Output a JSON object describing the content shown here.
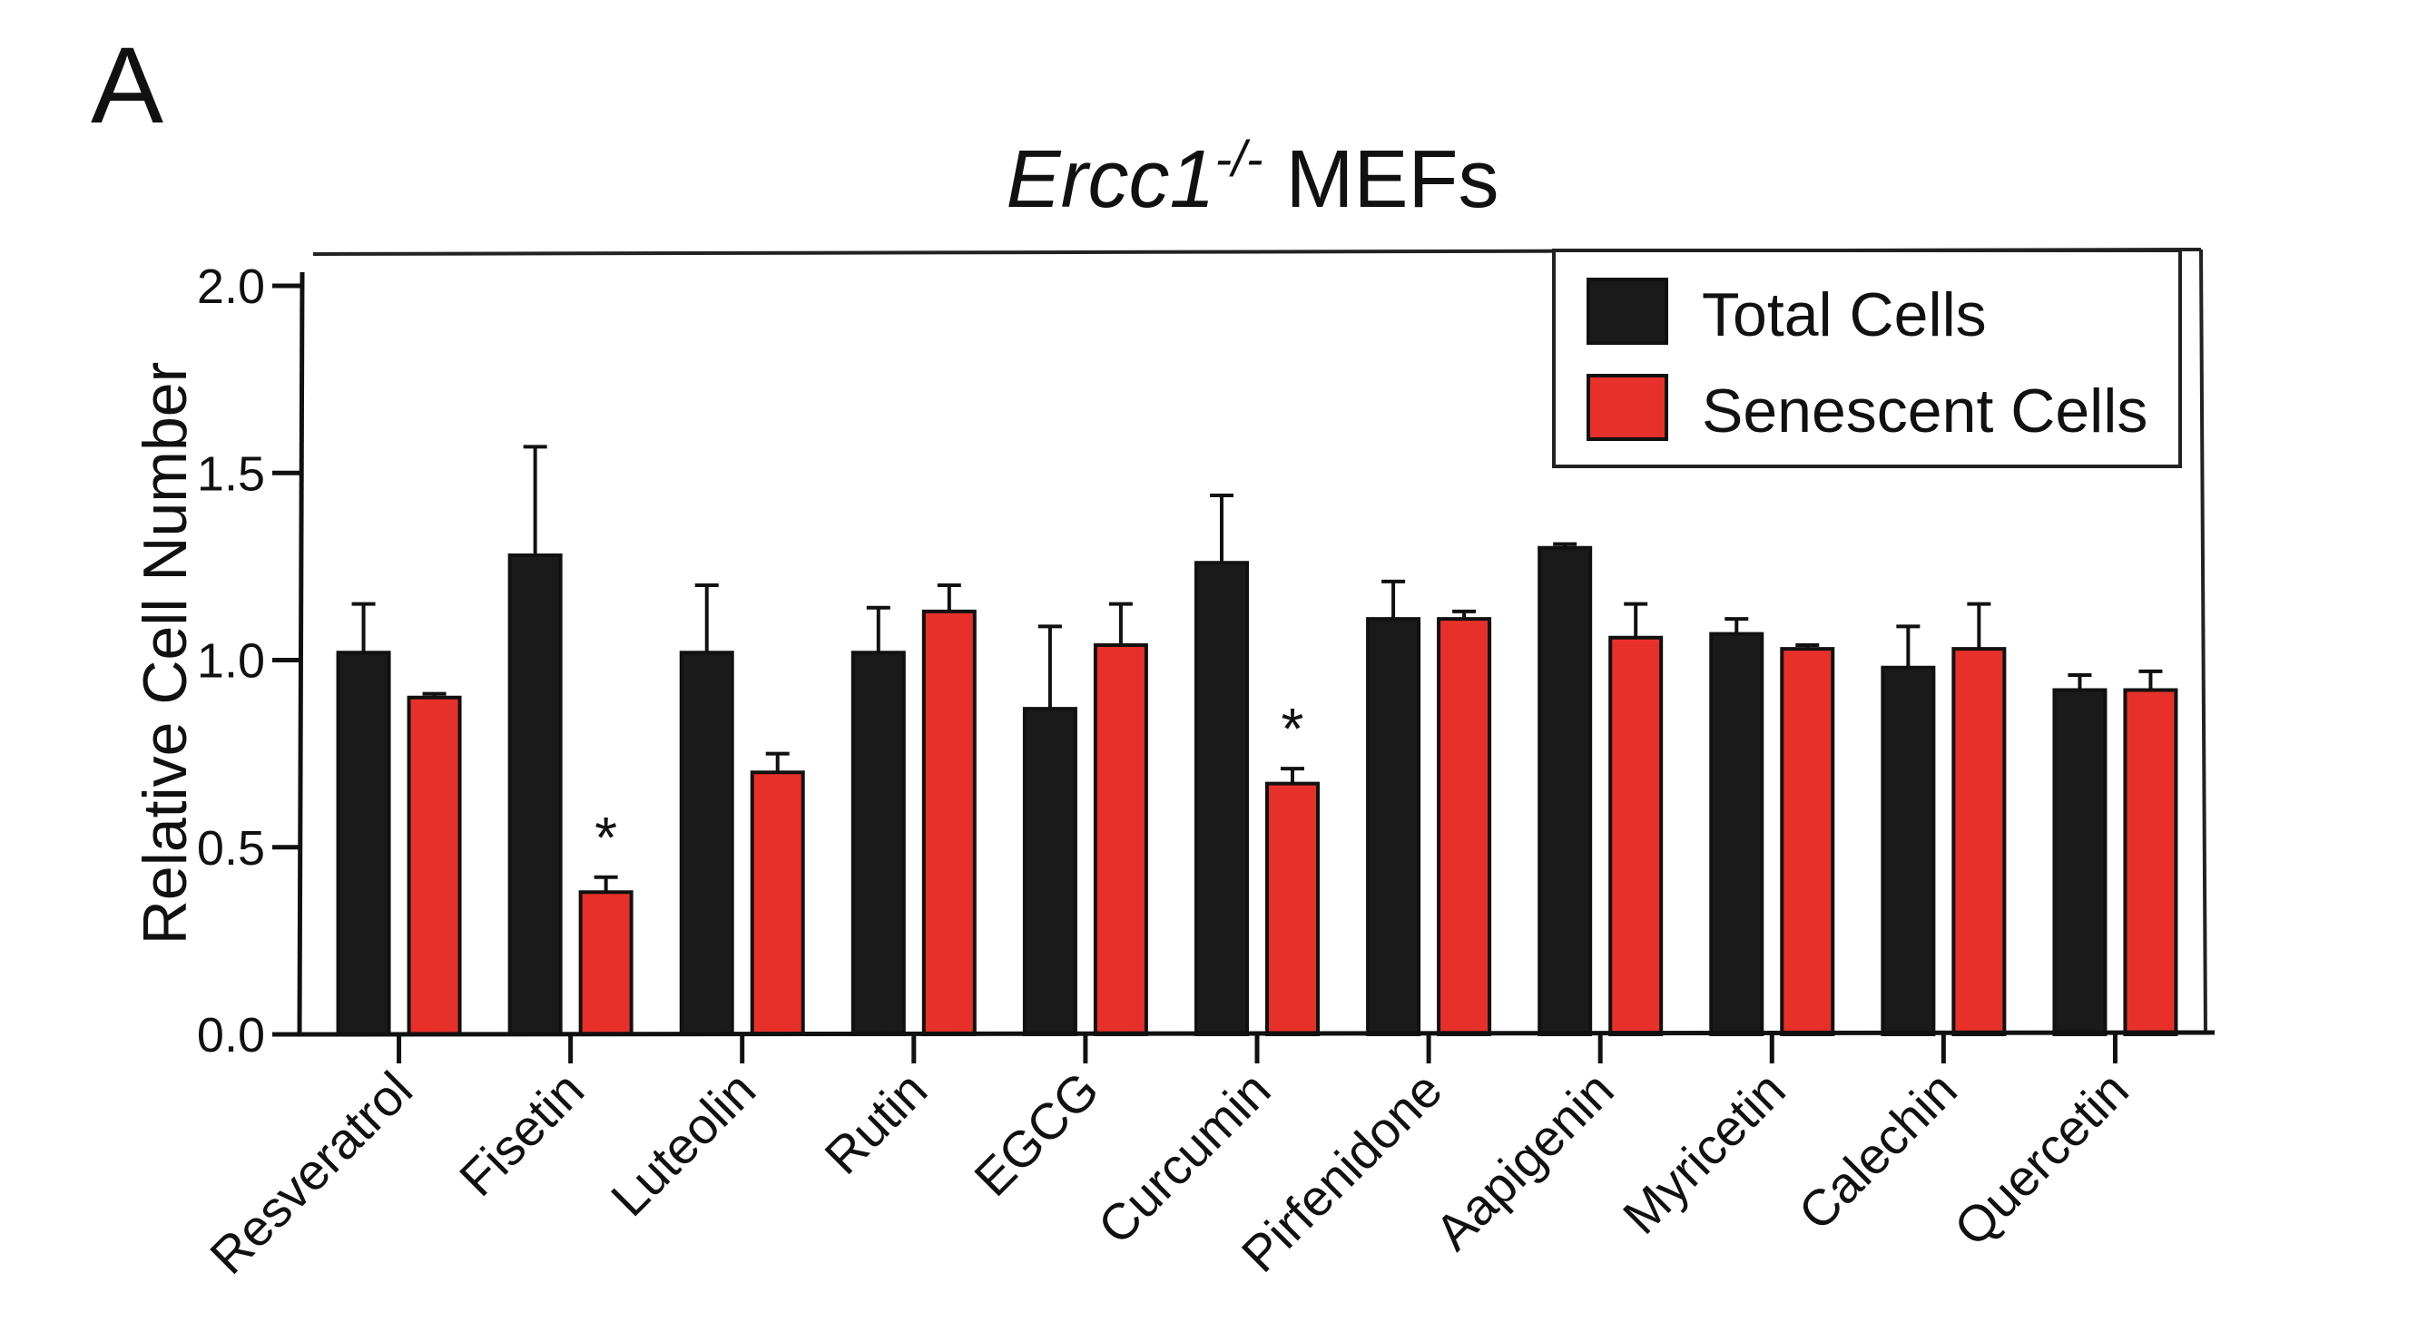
{
  "panel_label": "A",
  "chart_data": {
    "type": "bar",
    "title_main": "Ercc1",
    "title_sup": "-/-",
    "title_rest": " MEFs",
    "ylabel": "Relative Cell Number",
    "xlabel": "",
    "ylim": [
      0,
      2.0
    ],
    "yticks": [
      "0.0",
      "0.5",
      "1.0",
      "1.5",
      "2.0"
    ],
    "grid": false,
    "legend_position": "top-right",
    "categories": [
      "Resveratrol",
      "Fisetin",
      "Luteolin",
      "Rutin",
      "EGCG",
      "Curcumin",
      "Pirfenidone",
      "Aapigenin",
      "Myricetin",
      "Calechin",
      "Quercetin"
    ],
    "series": [
      {
        "name": "Total Cells",
        "color": "#1a1a1a",
        "values": [
          1.02,
          1.28,
          1.02,
          1.02,
          0.87,
          1.26,
          1.11,
          1.3,
          1.07,
          0.98,
          0.92
        ],
        "errors": [
          0.13,
          0.29,
          0.18,
          0.12,
          0.22,
          0.18,
          0.1,
          0.01,
          0.04,
          0.11,
          0.04
        ]
      },
      {
        "name": "Senescent Cells",
        "color": "#e8302a",
        "values": [
          0.9,
          0.38,
          0.7,
          1.13,
          1.04,
          0.67,
          1.11,
          1.06,
          1.03,
          1.03,
          0.92
        ],
        "errors": [
          0.01,
          0.04,
          0.05,
          0.07,
          0.11,
          0.04,
          0.02,
          0.09,
          0.01,
          0.12,
          0.05
        ]
      }
    ],
    "significance": [
      {
        "category": "Fisetin",
        "series": "Senescent Cells",
        "mark": "*"
      },
      {
        "category": "Curcumin",
        "series": "Senescent Cells",
        "mark": "*"
      }
    ]
  }
}
